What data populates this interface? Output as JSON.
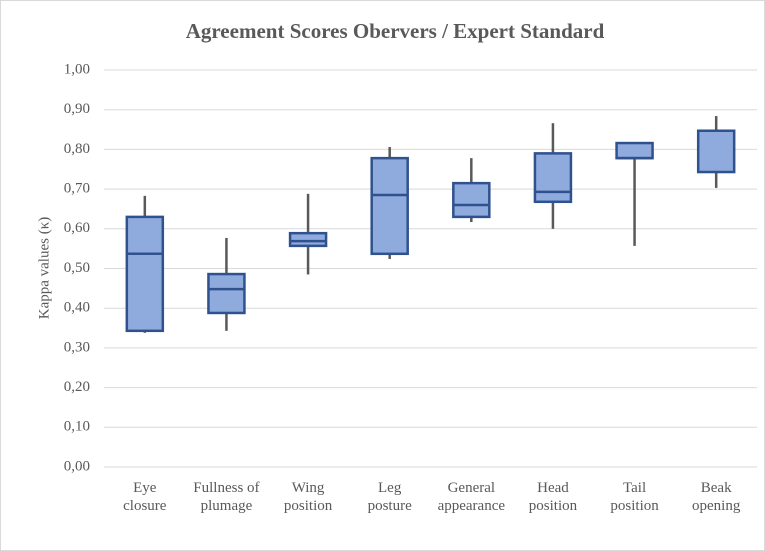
{
  "chart_data": {
    "type": "box",
    "title": "Agreement Scores Obervers / Expert Standard",
    "y_label": "Kappa values (κ)",
    "categories": [
      "Eye\nclosure",
      "Fullness of\nplumage",
      "Wing\nposition",
      "Leg\nposture",
      "General\nappearance",
      "Head\nposition",
      "Tail\nposition",
      "Beak\nopening"
    ],
    "boxes": [
      {
        "min": 0.338,
        "q1": 0.343,
        "median": 0.537,
        "q3": 0.63,
        "max": 0.683
      },
      {
        "min": 0.343,
        "q1": 0.388,
        "median": 0.448,
        "q3": 0.486,
        "max": 0.577
      },
      {
        "min": 0.485,
        "q1": 0.557,
        "median": 0.569,
        "q3": 0.589,
        "max": 0.688
      },
      {
        "min": 0.524,
        "q1": 0.537,
        "median": 0.685,
        "q3": 0.778,
        "max": 0.806
      },
      {
        "min": 0.617,
        "q1": 0.63,
        "median": 0.66,
        "q3": 0.715,
        "max": 0.778
      },
      {
        "min": 0.6,
        "q1": 0.668,
        "median": 0.693,
        "q3": 0.79,
        "max": 0.866
      },
      {
        "min": 0.557,
        "q1": 0.778,
        "median": 0.778,
        "q3": 0.816,
        "max": 0.816
      },
      {
        "min": 0.703,
        "q1": 0.743,
        "median": 0.847,
        "q3": 0.847,
        "max": 0.884
      }
    ],
    "color": "#8faadc",
    "edge_color": "#2f528f",
    "whisker_color": "#595959",
    "ylim": [
      0,
      1
    ],
    "yticks": [
      {
        "value": 0,
        "label": "0,00"
      },
      {
        "value": 0.1,
        "label": "0,10"
      },
      {
        "value": 0.2,
        "label": "0,20"
      },
      {
        "value": 0.3,
        "label": "0,30"
      },
      {
        "value": 0.4,
        "label": "0,40"
      },
      {
        "value": 0.5,
        "label": "0,50"
      },
      {
        "value": 0.6,
        "label": "0,60"
      },
      {
        "value": 0.7,
        "label": "0,70"
      },
      {
        "value": 0.8,
        "label": "0,80"
      },
      {
        "value": 0.9,
        "label": "0,90"
      },
      {
        "value": 1,
        "label": "1,00"
      }
    ],
    "grid": true
  }
}
